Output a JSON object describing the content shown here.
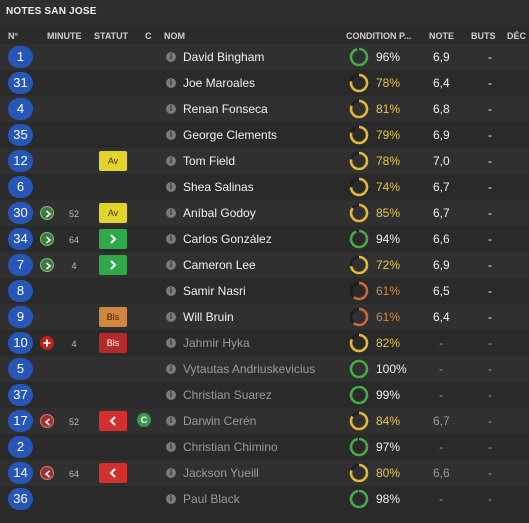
{
  "title": "NOTES SAN JOSE",
  "headers": {
    "num": "N°",
    "minute": "MINUTE",
    "statut": "STATUT",
    "c": "C",
    "nom": "NOM",
    "condition": "CONDITION P...",
    "note": "NOTE",
    "buts": "BUTS",
    "dec": "DÉC"
  },
  "colors": {
    "number_badge": "#2656b8",
    "cond_green": "#4aa84a",
    "cond_yellow": "#e0b83a",
    "cond_orange": "#c9693a",
    "yellow_card": "#e3d42a",
    "sub_in": "#2fa84a",
    "red_card": "#d32f2f",
    "bls": "#d0873f"
  },
  "players": [
    {
      "num": "1",
      "minute": "",
      "event": "",
      "statut": "",
      "statut_label": "",
      "captain": "",
      "name": "David Bingham",
      "cond": "96%",
      "cond_color": "green",
      "cond_level": 0.96,
      "note": "6,9",
      "buts": "-",
      "sub": false
    },
    {
      "num": "31",
      "minute": "",
      "event": "",
      "statut": "",
      "statut_label": "",
      "captain": "",
      "name": "Joe Maroales",
      "cond": "78%",
      "cond_color": "yellow",
      "cond_level": 0.78,
      "note": "6,4",
      "buts": "-",
      "sub": false
    },
    {
      "num": "4",
      "minute": "",
      "event": "",
      "statut": "",
      "statut_label": "",
      "captain": "",
      "name": "Renan Fonseca",
      "cond": "81%",
      "cond_color": "yellow",
      "cond_level": 0.81,
      "note": "6,8",
      "buts": "-",
      "sub": false
    },
    {
      "num": "35",
      "minute": "",
      "event": "",
      "statut": "",
      "statut_label": "",
      "captain": "",
      "name": "George Clements",
      "cond": "79%",
      "cond_color": "yellow",
      "cond_level": 0.79,
      "note": "6,9",
      "buts": "-",
      "sub": false
    },
    {
      "num": "12",
      "minute": "",
      "event": "",
      "statut": "av",
      "statut_label": "Av",
      "captain": "",
      "name": "Tom Field",
      "cond": "78%",
      "cond_color": "yellow",
      "cond_level": 0.78,
      "note": "7,0",
      "buts": "-",
      "sub": false
    },
    {
      "num": "6",
      "minute": "",
      "event": "",
      "statut": "",
      "statut_label": "",
      "captain": "",
      "name": "Shea Salinas",
      "cond": "74%",
      "cond_color": "yellow",
      "cond_level": 0.74,
      "note": "6,7",
      "buts": "-",
      "sub": false
    },
    {
      "num": "30",
      "minute": "52",
      "event": "in",
      "statut": "av",
      "statut_label": "Av",
      "captain": "",
      "name": "Aníbal Godoy",
      "cond": "85%",
      "cond_color": "yellow",
      "cond_level": 0.85,
      "note": "6,7",
      "buts": "-",
      "sub": false
    },
    {
      "num": "34",
      "minute": "64",
      "event": "in",
      "statut": "subin",
      "statut_label": "",
      "captain": "",
      "name": "Carlos González",
      "cond": "94%",
      "cond_color": "green",
      "cond_level": 0.94,
      "note": "6,6",
      "buts": "-",
      "sub": false
    },
    {
      "num": "7",
      "minute": "4",
      "event": "in",
      "statut": "subin",
      "statut_label": "",
      "captain": "",
      "name": "Cameron Lee",
      "cond": "72%",
      "cond_color": "yellow",
      "cond_level": 0.72,
      "note": "6,9",
      "buts": "-",
      "sub": false
    },
    {
      "num": "8",
      "minute": "",
      "event": "",
      "statut": "",
      "statut_label": "",
      "captain": "",
      "name": "Samir Nasri",
      "cond": "61%",
      "cond_color": "orange",
      "cond_level": 0.61,
      "note": "6,5",
      "buts": "-",
      "sub": false
    },
    {
      "num": "9",
      "minute": "",
      "event": "",
      "statut": "bls",
      "statut_label": "Bls",
      "captain": "",
      "name": "Will Bruin",
      "cond": "61%",
      "cond_color": "orange",
      "cond_level": 0.61,
      "note": "6,4",
      "buts": "-",
      "sub": false
    },
    {
      "num": "10",
      "minute": "4",
      "event": "add",
      "statut": "blsred",
      "statut_label": "Bls",
      "captain": "",
      "name": "Jahmir Hyka",
      "cond": "82%",
      "cond_color": "yellow",
      "cond_level": 0.82,
      "note": "-",
      "buts": "-",
      "sub": true
    },
    {
      "num": "5",
      "minute": "",
      "event": "",
      "statut": "",
      "statut_label": "",
      "captain": "",
      "name": "Vytautas Andriuskevicius",
      "cond": "100%",
      "cond_color": "green",
      "cond_level": 1.0,
      "note": "-",
      "buts": "-",
      "sub": true
    },
    {
      "num": "37",
      "minute": "",
      "event": "",
      "statut": "",
      "statut_label": "",
      "captain": "",
      "name": "Christian Suarez",
      "cond": "99%",
      "cond_color": "green",
      "cond_level": 0.99,
      "note": "-",
      "buts": "-",
      "sub": true
    },
    {
      "num": "17",
      "minute": "52",
      "event": "out",
      "statut": "red",
      "statut_label": "",
      "captain": "C",
      "name": "Darwin Cerén",
      "cond": "84%",
      "cond_color": "yellow",
      "cond_level": 0.84,
      "note": "6,7",
      "buts": "-",
      "sub": true
    },
    {
      "num": "2",
      "minute": "",
      "event": "",
      "statut": "",
      "statut_label": "",
      "captain": "",
      "name": "Christian Chimino",
      "cond": "97%",
      "cond_color": "green",
      "cond_level": 0.97,
      "note": "-",
      "buts": "-",
      "sub": true
    },
    {
      "num": "14",
      "minute": "64",
      "event": "out",
      "statut": "red",
      "statut_label": "",
      "captain": "",
      "name": "Jackson Yueill",
      "cond": "80%",
      "cond_color": "yellow",
      "cond_level": 0.8,
      "note": "6,6",
      "buts": "-",
      "sub": true
    },
    {
      "num": "36",
      "minute": "",
      "event": "",
      "statut": "",
      "statut_label": "",
      "captain": "",
      "name": "Paul Black",
      "cond": "98%",
      "cond_color": "green",
      "cond_level": 0.98,
      "note": "-",
      "buts": "-",
      "sub": true
    }
  ]
}
